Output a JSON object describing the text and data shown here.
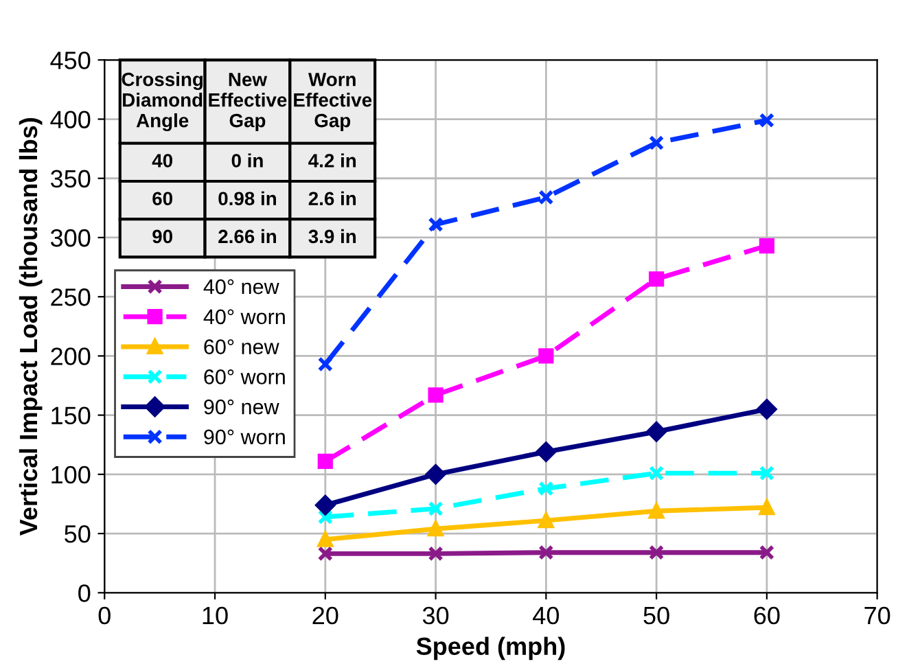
{
  "chart_data": {
    "type": "line",
    "xlabel": "Speed (mph)",
    "ylabel": "Vertical Impact Load (thousand lbs)",
    "x": [
      20,
      30,
      40,
      50,
      60
    ],
    "xlim": [
      0,
      70
    ],
    "xticks": [
      0,
      10,
      20,
      30,
      40,
      50,
      60,
      70
    ],
    "ylim": [
      0,
      450
    ],
    "yticks": [
      0,
      50,
      100,
      150,
      200,
      250,
      300,
      350,
      400,
      450
    ],
    "grid": true,
    "legend": "left",
    "series": [
      {
        "name": "40° new",
        "color": "#8b1a89",
        "marker": "cross",
        "line_style": "solid",
        "values": [
          33,
          33,
          34,
          34,
          34
        ]
      },
      {
        "name": "40° worn",
        "color": "#ff00ff",
        "marker": "square",
        "line_style": "dashed",
        "values": [
          111,
          167,
          200,
          265,
          293
        ]
      },
      {
        "name": "60° new",
        "color": "#ffc000",
        "marker": "triangle",
        "line_style": "solid",
        "values": [
          45,
          54,
          61,
          69,
          72
        ]
      },
      {
        "name": "60° worn",
        "color": "#00ffff",
        "marker": "cross",
        "line_style": "dashed",
        "values": [
          64,
          71,
          88,
          101,
          101
        ]
      },
      {
        "name": "90° new",
        "color": "#000080",
        "marker": "diamond",
        "line_style": "solid",
        "values": [
          74,
          100,
          119,
          136,
          155
        ]
      },
      {
        "name": "90° worn",
        "color": "#0033ff",
        "marker": "cross",
        "line_style": "dashed",
        "values": [
          193,
          311,
          334,
          380,
          399
        ]
      }
    ],
    "annotations": [
      "Crossing\nDiamond\nAngle",
      "New\nEffective\nGap",
      "Worn\nEffective\nGap",
      "40",
      "0 in",
      "4.2 in",
      "60",
      "0.98 in",
      "2.6 in",
      "90",
      "2.66 in",
      "3.9 in"
    ]
  }
}
